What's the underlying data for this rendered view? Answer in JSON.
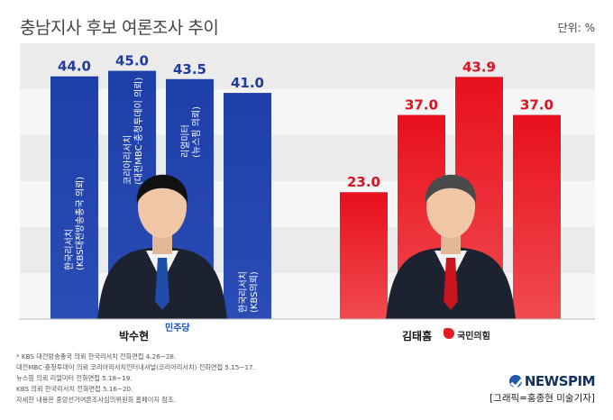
{
  "title": "충남지사 후보 여론조사 추이",
  "unit": "단위: %",
  "chart_data": {
    "type": "bar",
    "ylim": [
      0,
      50
    ],
    "grid": true,
    "series": [
      {
        "name": "박수현",
        "party": "민주당",
        "color": "#1f3c9e",
        "values": [
          44.0,
          45.0,
          43.5,
          41.0
        ],
        "labels": [
          "44.0",
          "45.0",
          "43.5",
          "41.0"
        ],
        "bar_texts": [
          [
            "한국리서치",
            "(KBS대전방송총국 의뢰)"
          ],
          [
            "코리아리서치",
            "(대전MBC·충청투데이 의뢰)"
          ],
          [
            "리얼미터",
            "(뉴스핌 의뢰)"
          ],
          [
            "한국리서치",
            "(KBS의뢰)"
          ]
        ]
      },
      {
        "name": "김태흠",
        "party": "국민의힘",
        "color": "#e3121e",
        "values": [
          23.0,
          37.0,
          43.9,
          37.0
        ],
        "labels": [
          "23.0",
          "37.0",
          "43.9",
          "37.0"
        ]
      }
    ]
  },
  "notes": [
    "* KBS 대전방송총국 의뢰 한국리서치 전화면접 4.26~28.",
    "  대전MBC·충청투데이 의뢰 코리아리서치인터내셔널(코리아리서치) 전화면접 5.15~17.",
    "  뉴스핌 의뢰 리얼미터 전화면접 5.18~19.",
    "  KBS 의뢰 한국리서치 전화면접 5.16~20.",
    "  자세한 내용은 중앙선거여론조사심의위원회 홈페이지 참조."
  ],
  "brand": "NEWSPIM",
  "credit": "[그래픽=홍종현 미술기자]"
}
